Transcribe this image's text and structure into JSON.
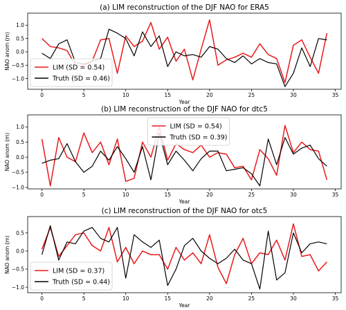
{
  "chart_data": [
    {
      "type": "line",
      "title": "(a) LIM reconstruction of the DJF NAO for ERA5",
      "xlabel": "Year",
      "ylabel": "NAO anom (m)",
      "xlim": [
        -1.7,
        35.7
      ],
      "ylim": [
        -1.4,
        1.45
      ],
      "xticks": [
        0,
        5,
        10,
        15,
        20,
        25,
        30,
        35
      ],
      "yticks": [
        -1.0,
        -0.5,
        0.0,
        0.5,
        1.0
      ],
      "ytick_labels": [
        "−1.0",
        "−0.5",
        "0.0",
        "0.5",
        "1.0"
      ],
      "legend_position": "lower-left",
      "x": [
        0,
        1,
        2,
        3,
        4,
        5,
        6,
        7,
        8,
        9,
        10,
        11,
        12,
        13,
        14,
        15,
        16,
        17,
        18,
        19,
        20,
        21,
        22,
        23,
        24,
        25,
        26,
        27,
        28,
        29,
        30,
        31,
        32,
        33,
        34
      ],
      "series": [
        {
          "name": "LIM (SD = 0.54)",
          "color": "#e8191b",
          "values": [
            0.5,
            0.2,
            0.15,
            0.05,
            -0.5,
            -0.5,
            -0.35,
            0.45,
            0.5,
            -0.8,
            0.6,
            0.2,
            0.4,
            1.1,
            0.1,
            0.55,
            -0.35,
            0.1,
            -1.05,
            0.1,
            1.2,
            -0.5,
            -0.3,
            -0.2,
            -0.05,
            -0.2,
            0.3,
            -0.1,
            -0.25,
            -1.15,
            0.25,
            0.45,
            -0.2,
            -0.8,
            0.7
          ]
        },
        {
          "name": "Truth (SD = 0.46)",
          "color": "#000000",
          "values": [
            -0.05,
            -0.25,
            0.3,
            0.45,
            -0.4,
            -0.45,
            -0.35,
            -0.25,
            0.85,
            0.7,
            0.5,
            -0.15,
            0.75,
            0.2,
            0.6,
            -0.55,
            0.0,
            -0.15,
            -0.1,
            -0.2,
            0.2,
            0.1,
            -0.25,
            -0.4,
            -0.15,
            -0.45,
            -0.25,
            -0.4,
            -0.45,
            -1.3,
            -0.8,
            0.15,
            -0.55,
            0.5,
            0.45
          ]
        }
      ]
    },
    {
      "type": "line",
      "title": "(b) LIM reconstruction of the DJF NAO for dtc5",
      "xlabel": "Year",
      "ylabel": "NAO anom (m)",
      "xlim": [
        -1.7,
        35.7
      ],
      "ylim": [
        -1.05,
        1.4
      ],
      "xticks": [
        0,
        5,
        10,
        15,
        20,
        25,
        30,
        35
      ],
      "yticks": [
        -1.0,
        -0.5,
        0.0,
        0.5,
        1.0
      ],
      "ytick_labels": [
        "−1.0",
        "−0.5",
        "0.0",
        "0.5",
        "1.0"
      ],
      "legend_position": "upper-center",
      "x": [
        0,
        1,
        2,
        3,
        4,
        5,
        6,
        7,
        8,
        9,
        10,
        11,
        12,
        13,
        14,
        15,
        16,
        17,
        18,
        19,
        20,
        21,
        22,
        23,
        24,
        25,
        26,
        27,
        28,
        29,
        30,
        31,
        32,
        33,
        34
      ],
      "series": [
        {
          "name": "LIM (SD = 0.54)",
          "color": "#e8191b",
          "values": [
            0.6,
            -0.95,
            0.65,
            0.0,
            -0.15,
            0.8,
            0.15,
            0.5,
            -0.25,
            0.6,
            -0.8,
            -0.7,
            0.5,
            0.0,
            1.0,
            -0.1,
            0.45,
            0.25,
            0.15,
            0.4,
            0.0,
            0.15,
            0.1,
            -0.35,
            -0.3,
            -0.75,
            0.25,
            -0.05,
            -0.6,
            1.05,
            0.15,
            0.5,
            0.25,
            0.2,
            -0.75
          ]
        },
        {
          "name": "Truth (SD = 0.39)",
          "color": "#000000",
          "values": [
            -0.2,
            -0.1,
            -0.05,
            0.45,
            -0.15,
            -0.5,
            -0.3,
            0.2,
            -0.1,
            0.35,
            -0.05,
            -0.5,
            0.35,
            -0.75,
            0.8,
            -0.25,
            0.2,
            -0.1,
            -0.45,
            -0.05,
            0.2,
            0.2,
            -0.45,
            -0.4,
            -0.35,
            -0.55,
            -0.95,
            0.6,
            -0.25,
            0.65,
            0.1,
            0.3,
            0.4,
            -0.05,
            -0.3
          ]
        }
      ]
    },
    {
      "type": "line",
      "title": "(c) LIM reconstruction of the DJF NAO for otc5",
      "xlabel": "Year",
      "ylabel": "NAO anom (m)",
      "xlim": [
        -1.7,
        35.7
      ],
      "ylim": [
        -1.15,
        0.95
      ],
      "xticks": [
        0,
        5,
        10,
        15,
        20,
        25,
        30,
        35
      ],
      "yticks": [
        -1.0,
        -0.5,
        0.0,
        0.5
      ],
      "ytick_labels": [
        "−1.0",
        "−0.5",
        "0.0",
        "0.5"
      ],
      "legend_position": "lower-left",
      "x": [
        0,
        1,
        2,
        3,
        4,
        5,
        6,
        7,
        8,
        9,
        10,
        11,
        12,
        13,
        14,
        15,
        16,
        17,
        18,
        19,
        20,
        21,
        22,
        23,
        24,
        25,
        26,
        27,
        28,
        29,
        30,
        31,
        32,
        33,
        34
      ],
      "series": [
        {
          "name": "LIM (SD = 0.37)",
          "color": "#e8191b",
          "values": [
            0.05,
            0.65,
            -0.15,
            0.15,
            0.45,
            0.5,
            0.15,
            0.0,
            0.65,
            -0.3,
            0.1,
            -0.35,
            0.0,
            -0.1,
            -0.1,
            -0.5,
            0.1,
            -0.25,
            -0.05,
            -0.35,
            0.45,
            -0.45,
            -0.9,
            -0.1,
            0.35,
            -0.35,
            -0.05,
            -0.1,
            0.3,
            -0.25,
            0.75,
            -0.15,
            -0.1,
            -0.55,
            -0.3
          ]
        },
        {
          "name": "Truth (SD = 0.44)",
          "color": "#000000",
          "values": [
            -0.1,
            0.7,
            -0.25,
            0.25,
            0.2,
            0.55,
            0.65,
            0.35,
            0.25,
            0.65,
            -0.75,
            0.45,
            0.25,
            0.1,
            0.3,
            -0.95,
            -0.5,
            0.15,
            0.35,
            0.0,
            -0.2,
            -0.35,
            -0.2,
            0.05,
            -0.25,
            -0.35,
            -1.05,
            0.55,
            -0.8,
            -0.6,
            0.5,
            -0.05,
            0.2,
            0.25,
            0.2
          ]
        }
      ]
    }
  ]
}
